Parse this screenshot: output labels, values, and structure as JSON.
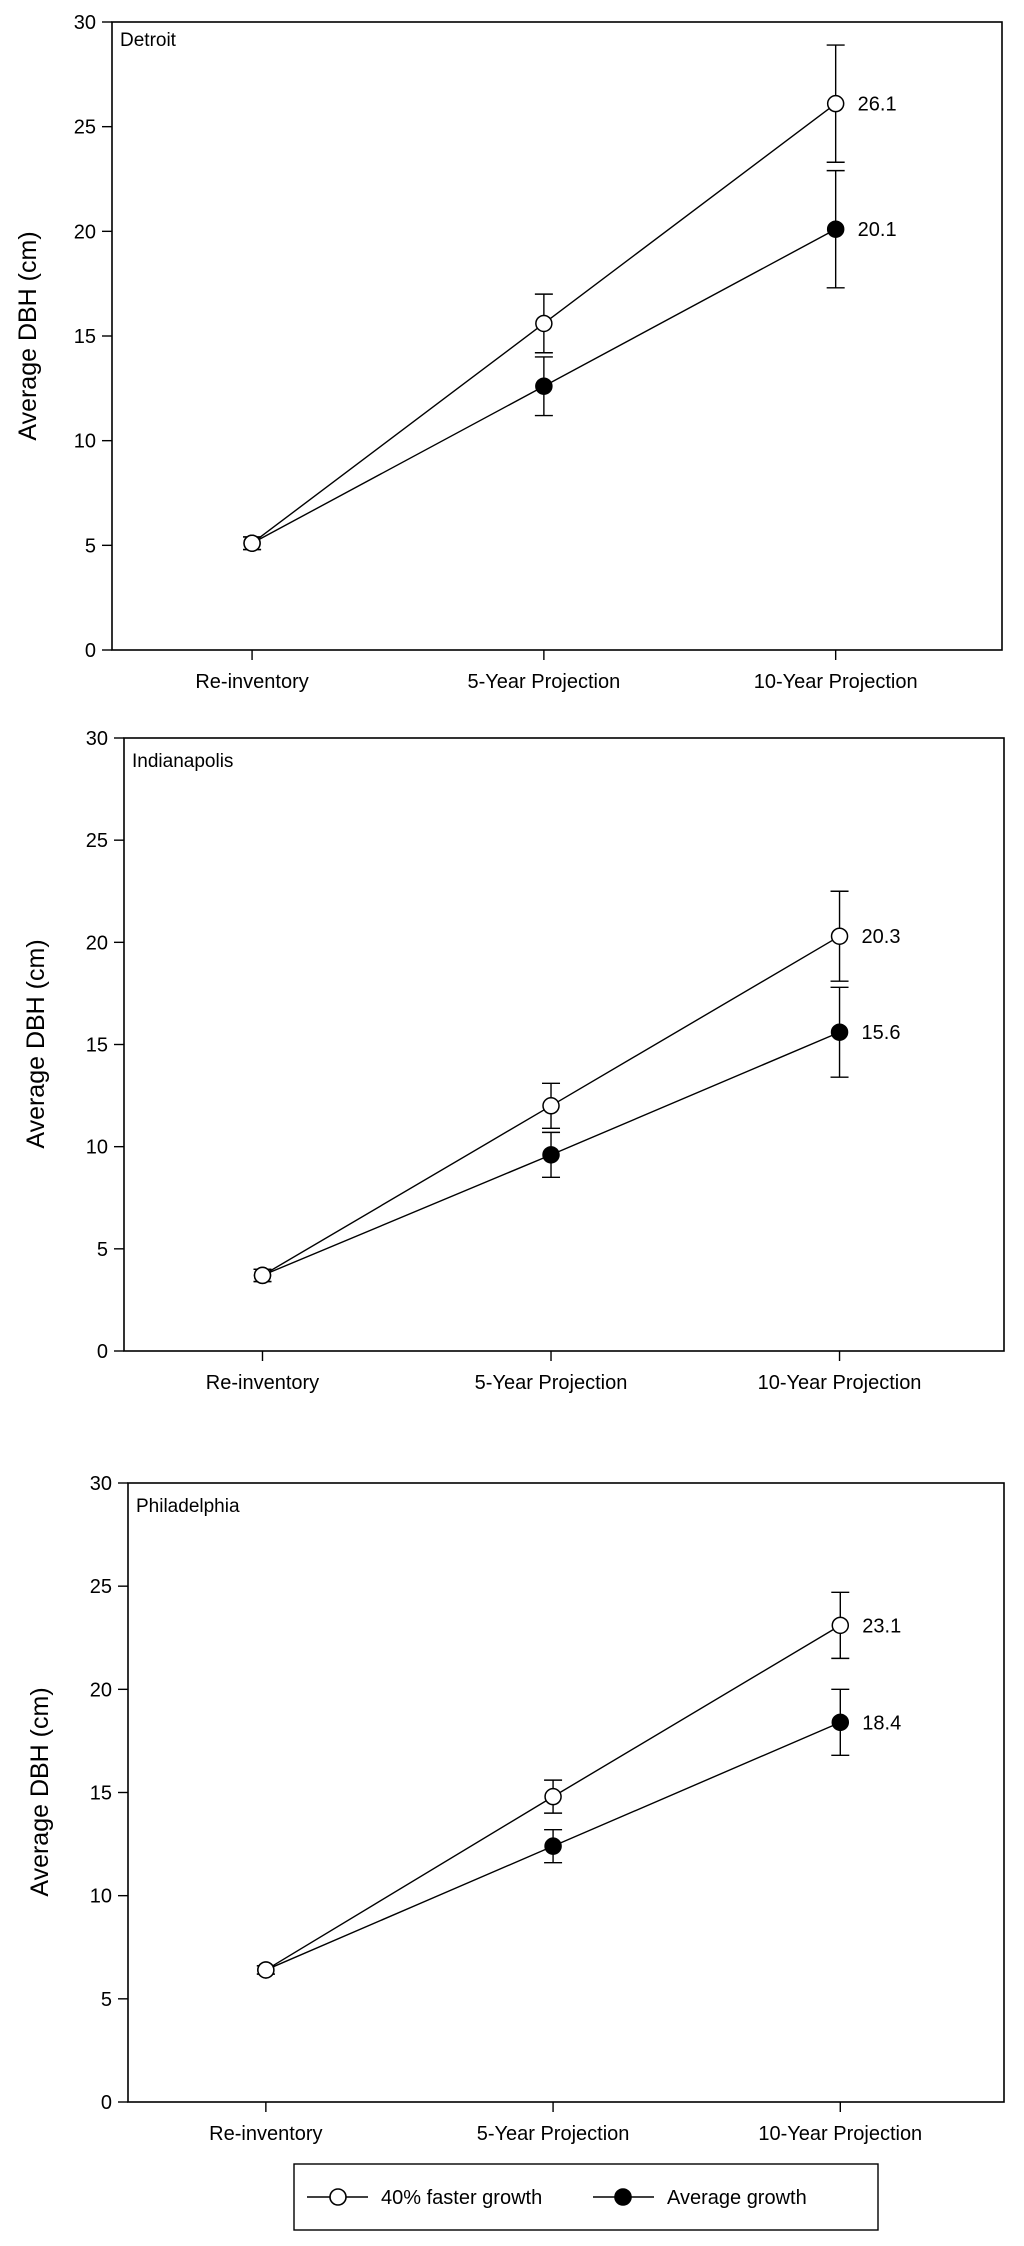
{
  "chart_data": [
    {
      "type": "line",
      "title": "Detroit",
      "ylabel": "Average DBH (cm)",
      "xlabel": "",
      "ylim": [
        0,
        30
      ],
      "yticks": [
        0,
        5,
        10,
        15,
        20,
        25,
        30
      ],
      "categories": [
        "Re-inventory",
        "5-Year Projection",
        "10-Year Projection"
      ],
      "series": [
        {
          "name": "40% faster growth",
          "marker": "open-circle",
          "values": [
            5.1,
            15.6,
            26.1
          ],
          "error": [
            0.3,
            1.4,
            2.8
          ]
        },
        {
          "name": "Average growth",
          "marker": "filled-circle",
          "values": [
            5.1,
            12.6,
            20.1
          ],
          "error": [
            0.3,
            1.4,
            2.8
          ]
        }
      ],
      "annotations": [
        "26.1",
        "20.1"
      ]
    },
    {
      "type": "line",
      "title": "Indianapolis",
      "ylabel": "Average DBH (cm)",
      "xlabel": "",
      "ylim": [
        0,
        30
      ],
      "yticks": [
        0,
        5,
        10,
        15,
        20,
        25,
        30
      ],
      "categories": [
        "Re-inventory",
        "5-Year Projection",
        "10-Year Projection"
      ],
      "series": [
        {
          "name": "40% faster growth",
          "marker": "open-circle",
          "values": [
            3.7,
            12.0,
            20.3
          ],
          "error": [
            0.3,
            1.1,
            2.2
          ]
        },
        {
          "name": "Average growth",
          "marker": "filled-circle",
          "values": [
            3.7,
            9.6,
            15.6
          ],
          "error": [
            0.3,
            1.1,
            2.2
          ]
        }
      ],
      "annotations": [
        "20.3",
        "15.6"
      ]
    },
    {
      "type": "line",
      "title": "Philadelphia",
      "ylabel": "Average DBH (cm)",
      "xlabel": "",
      "ylim": [
        0,
        30
      ],
      "yticks": [
        0,
        5,
        10,
        15,
        20,
        25,
        30
      ],
      "categories": [
        "Re-inventory",
        "5-Year Projection",
        "10-Year Projection"
      ],
      "series": [
        {
          "name": "40% faster growth",
          "marker": "open-circle",
          "values": [
            6.4,
            14.8,
            23.1
          ],
          "error": [
            0.2,
            0.8,
            1.6
          ]
        },
        {
          "name": "Average growth",
          "marker": "filled-circle",
          "values": [
            6.4,
            12.4,
            18.4
          ],
          "error": [
            0.2,
            0.8,
            1.6
          ]
        }
      ],
      "annotations": [
        "23.1",
        "18.4"
      ]
    }
  ],
  "legend": {
    "placement": "bottom-center",
    "items": [
      {
        "label": "40% faster growth",
        "marker": "open-circle"
      },
      {
        "label": "Average growth",
        "marker": "filled-circle"
      }
    ]
  }
}
